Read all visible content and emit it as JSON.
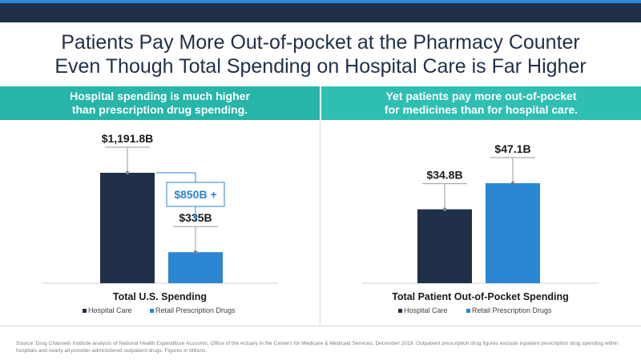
{
  "title_line1": "Patients Pay More Out-of-pocket at the Pharmacy Counter",
  "title_line2": "Even Though Total Spending on Hospital Care is Far Higher",
  "left_band": "Hospital spending is much higher\nthan prescription drug spending.",
  "right_band": "Yet patients pay more out-of-pocket\nfor medicines than for hospital care.",
  "source": "Source: Drug Channels Institute analysis of National Health Expenditure Accounts, Office of the Actuary in the Centers for Medicare & Medicaid Services, December 2019. Outpatient prescription drug figures exclude inpatient prescription drug spending within hospitals and nearly all provider-administered outpatient drugs. Figures in billions.",
  "colors": {
    "hospital": "#1f3048",
    "drugs": "#2b86d4",
    "teal": "#26b5a8",
    "navy": "#1f3048"
  },
  "chart_data": [
    {
      "type": "bar",
      "xlabel": "Total U.S. Spending",
      "categories": [
        "Hospital Care",
        "Retail Prescription Drugs"
      ],
      "values": [
        1191.8,
        335
      ],
      "labels": [
        "$1,191.8B",
        "$335B"
      ],
      "annotation": "$850B +",
      "legend": [
        "Hospital Care",
        "Retail Prescription Drugs"
      ],
      "legend_position": "bottom",
      "colors": [
        "#1f3048",
        "#2b86d4"
      ],
      "ylim": [
        0,
        1191.8
      ]
    },
    {
      "type": "bar",
      "xlabel": "Total Patient Out-of-Pocket Spending",
      "categories": [
        "Hospital Care",
        "Retail Prescription Drugs"
      ],
      "values": [
        34.8,
        47.1
      ],
      "labels": [
        "$34.8B",
        "$47.1B"
      ],
      "legend": [
        "Hospital Care",
        "Retail Prescription Drugs"
      ],
      "legend_position": "bottom",
      "colors": [
        "#1f3048",
        "#2b86d4"
      ],
      "ylim": [
        0,
        47.1
      ]
    }
  ]
}
